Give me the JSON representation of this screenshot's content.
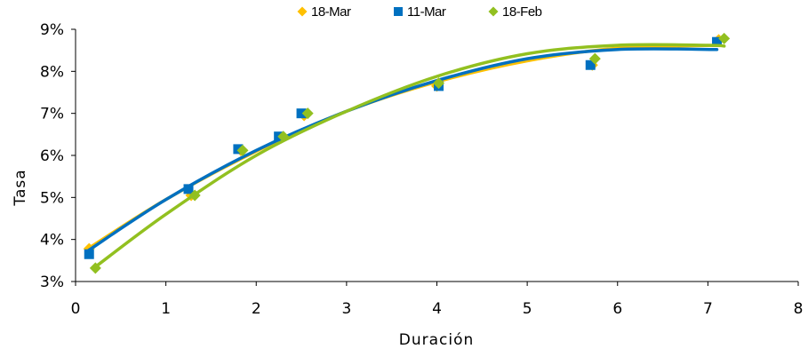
{
  "chart_data": {
    "type": "scatter",
    "title": "",
    "xlabel": "Duración",
    "ylabel": "Tasa",
    "xlim": [
      0,
      8
    ],
    "ylim": [
      3,
      9
    ],
    "xticks": [
      "0",
      "1",
      "2",
      "3",
      "4",
      "5",
      "6",
      "7",
      "8"
    ],
    "yticks": [
      "3%",
      "4%",
      "5%",
      "6%",
      "7%",
      "8%",
      "9%"
    ],
    "grid": false,
    "legend_position": "top",
    "series": [
      {
        "name": "18-Mar",
        "color": "#FFC000",
        "marker": "diamond",
        "points": [
          [
            0.15,
            3.78
          ],
          [
            1.28,
            5.05
          ],
          [
            1.83,
            6.12
          ],
          [
            2.28,
            6.42
          ],
          [
            2.53,
            6.95
          ],
          [
            4.0,
            7.65
          ],
          [
            5.72,
            8.15
          ],
          [
            7.12,
            8.75
          ]
        ],
        "trend": [
          [
            0.15,
            3.8
          ],
          [
            1.0,
            4.95
          ],
          [
            2.0,
            6.1
          ],
          [
            3.0,
            7.05
          ],
          [
            4.0,
            7.75
          ],
          [
            5.0,
            8.25
          ],
          [
            6.0,
            8.55
          ],
          [
            7.1,
            8.62
          ]
        ]
      },
      {
        "name": "11-Mar",
        "color": "#0070C0",
        "marker": "square",
        "points": [
          [
            0.15,
            3.65
          ],
          [
            1.25,
            5.2
          ],
          [
            1.8,
            6.15
          ],
          [
            2.25,
            6.45
          ],
          [
            2.5,
            7.0
          ],
          [
            4.02,
            7.65
          ],
          [
            5.7,
            8.15
          ],
          [
            7.1,
            8.7
          ]
        ],
        "trend": [
          [
            0.15,
            3.75
          ],
          [
            1.0,
            4.95
          ],
          [
            2.0,
            6.12
          ],
          [
            3.0,
            7.05
          ],
          [
            4.0,
            7.78
          ],
          [
            5.0,
            8.3
          ],
          [
            6.0,
            8.52
          ],
          [
            7.1,
            8.52
          ]
        ]
      },
      {
        "name": "18-Feb",
        "color": "#92C020",
        "marker": "diamond",
        "points": [
          [
            0.22,
            3.32
          ],
          [
            1.32,
            5.05
          ],
          [
            1.85,
            6.12
          ],
          [
            2.3,
            6.45
          ],
          [
            2.57,
            7.0
          ],
          [
            4.02,
            7.72
          ],
          [
            5.75,
            8.3
          ],
          [
            7.18,
            8.78
          ]
        ],
        "trend": [
          [
            0.22,
            3.35
          ],
          [
            1.0,
            4.6
          ],
          [
            2.0,
            6.0
          ],
          [
            3.0,
            7.05
          ],
          [
            4.0,
            7.88
          ],
          [
            5.0,
            8.42
          ],
          [
            6.0,
            8.62
          ],
          [
            7.0,
            8.62
          ],
          [
            7.18,
            8.6
          ]
        ]
      }
    ]
  }
}
